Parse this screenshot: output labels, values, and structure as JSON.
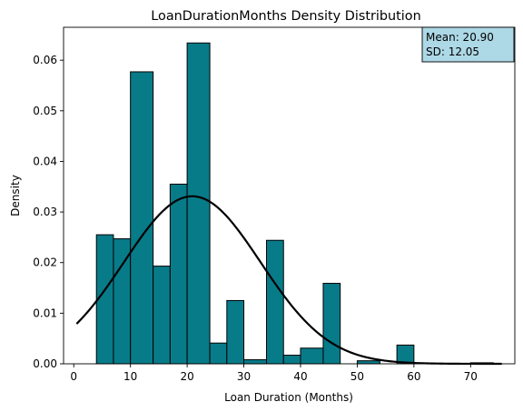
{
  "chart_data": {
    "type": "bar",
    "title": "LoanDurationMonths Density Distribution",
    "xlabel": "Loan Duration (Months)",
    "ylabel": "Density",
    "xlim": [
      -1.8,
      77.8
    ],
    "ylim": [
      0,
      0.0665
    ],
    "xticks": [
      0,
      10,
      20,
      30,
      40,
      50,
      60,
      70
    ],
    "yticks": [
      0.0,
      0.01,
      0.02,
      0.03,
      0.04,
      0.05,
      0.06
    ],
    "ytick_labels": [
      "0.00",
      "0.01",
      "0.02",
      "0.03",
      "0.04",
      "0.05",
      "0.06"
    ],
    "grid": false,
    "bar_color": "#087b89",
    "bar_edge_color": "#000000",
    "curve_color": "#000000",
    "bins": [
      {
        "x0": 4,
        "x1": 7,
        "density": 0.0255
      },
      {
        "x0": 7,
        "x1": 10,
        "density": 0.0247
      },
      {
        "x0": 10,
        "x1": 14,
        "density": 0.0577
      },
      {
        "x0": 14,
        "x1": 17,
        "density": 0.0193
      },
      {
        "x0": 17,
        "x1": 20,
        "density": 0.0355
      },
      {
        "x0": 20,
        "x1": 24,
        "density": 0.0634
      },
      {
        "x0": 24,
        "x1": 27,
        "density": 0.0041
      },
      {
        "x0": 27,
        "x1": 30,
        "density": 0.0125
      },
      {
        "x0": 30,
        "x1": 34,
        "density": 0.0008
      },
      {
        "x0": 34,
        "x1": 37,
        "density": 0.0244
      },
      {
        "x0": 37,
        "x1": 40,
        "density": 0.0017
      },
      {
        "x0": 40,
        "x1": 44,
        "density": 0.0031
      },
      {
        "x0": 44,
        "x1": 47,
        "density": 0.0159
      },
      {
        "x0": 47,
        "x1": 50,
        "density": 0.0
      },
      {
        "x0": 50,
        "x1": 54,
        "density": 0.0006
      },
      {
        "x0": 54,
        "x1": 57,
        "density": 0.0
      },
      {
        "x0": 57,
        "x1": 60,
        "density": 0.0037
      },
      {
        "x0": 60,
        "x1": 64,
        "density": 0.0
      },
      {
        "x0": 64,
        "x1": 67,
        "density": 0.0
      },
      {
        "x0": 67,
        "x1": 70,
        "density": 0.0
      },
      {
        "x0": 70,
        "x1": 74,
        "density": 0.0002
      }
    ],
    "normal_curve": {
      "mean": 20.9,
      "sd": 12.05,
      "x_start": 0.5,
      "x_end": 75.5
    },
    "annotation": {
      "lines": [
        "Mean: 20.90",
        "SD: 12.05"
      ],
      "placement": "top-right",
      "background": "#add8e6"
    }
  }
}
